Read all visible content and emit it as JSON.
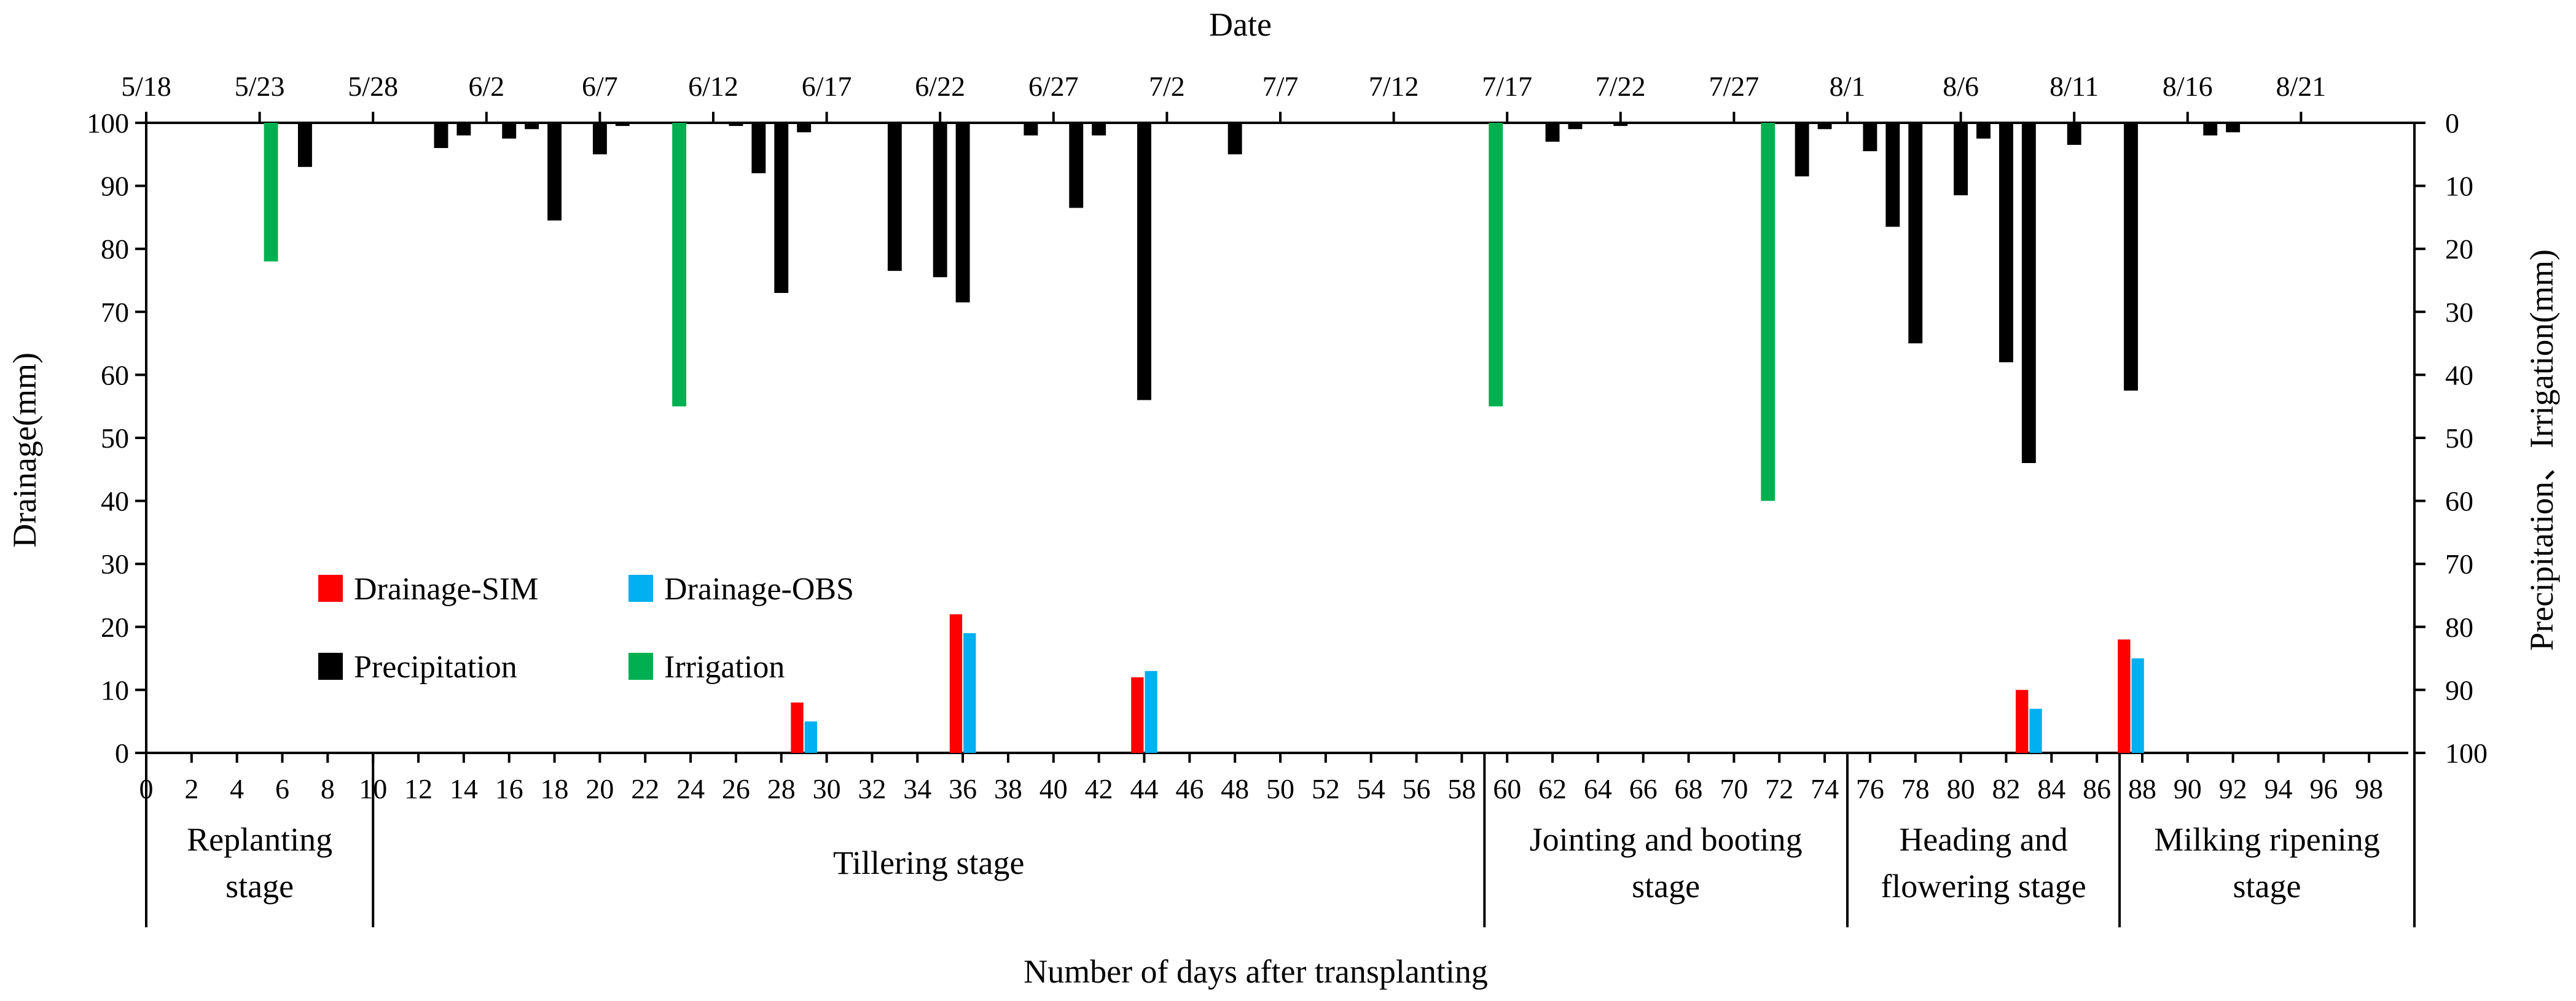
{
  "chart_data": {
    "type": "bar",
    "xlabel_bottom": "Number of days after transplanting",
    "xlabel_top": "Date",
    "ylabel_left": "Drainage(mm)",
    "ylabel_right": "Precipitation、Irrigation(mm)",
    "x_range": [
      0,
      100
    ],
    "ylim_left": [
      0,
      100
    ],
    "ylim_right": [
      0,
      100
    ],
    "right_axis_inverted": true,
    "left_ticks": [
      "0",
      "10",
      "20",
      "30",
      "40",
      "50",
      "60",
      "70",
      "80",
      "90",
      "100"
    ],
    "right_ticks": [
      "0",
      "10",
      "20",
      "30",
      "40",
      "50",
      "60",
      "70",
      "80",
      "90",
      "100"
    ],
    "bottom_ticks": [
      "0",
      "2",
      "4",
      "6",
      "8",
      "10",
      "12",
      "14",
      "16",
      "18",
      "20",
      "22",
      "24",
      "26",
      "28",
      "30",
      "32",
      "34",
      "36",
      "38",
      "40",
      "42",
      "44",
      "46",
      "48",
      "50",
      "52",
      "54",
      "56",
      "58",
      "60",
      "62",
      "64",
      "66",
      "68",
      "70",
      "72",
      "74",
      "76",
      "78",
      "80",
      "82",
      "84",
      "86",
      "88",
      "90",
      "92",
      "94",
      "96",
      "98"
    ],
    "top_ticks": [
      {
        "label": "5/18",
        "day": 0
      },
      {
        "label": "5/23",
        "day": 5
      },
      {
        "label": "5/28",
        "day": 10
      },
      {
        "label": "6/2",
        "day": 15
      },
      {
        "label": "6/7",
        "day": 20
      },
      {
        "label": "6/12",
        "day": 25
      },
      {
        "label": "6/17",
        "day": 30
      },
      {
        "label": "6/22",
        "day": 35
      },
      {
        "label": "6/27",
        "day": 40
      },
      {
        "label": "7/2",
        "day": 45
      },
      {
        "label": "7/7",
        "day": 50
      },
      {
        "label": "7/12",
        "day": 55
      },
      {
        "label": "7/17",
        "day": 60
      },
      {
        "label": "7/22",
        "day": 65
      },
      {
        "label": "7/27",
        "day": 70
      },
      {
        "label": "8/1",
        "day": 75
      },
      {
        "label": "8/6",
        "day": 80
      },
      {
        "label": "8/11",
        "day": 85
      },
      {
        "label": "8/16",
        "day": 90
      },
      {
        "label": "8/21",
        "day": 95
      }
    ],
    "series": [
      {
        "name": "Drainage-SIM",
        "axis": "left",
        "color": "#ff0000",
        "x": [
          29,
          36,
          44,
          83,
          87.5
        ],
        "values": [
          8,
          22,
          12,
          10,
          18
        ]
      },
      {
        "name": "Drainage-OBS",
        "axis": "left",
        "color": "#00b0f0",
        "x": [
          29,
          36,
          44,
          83,
          87.5
        ],
        "values": [
          5,
          19,
          13,
          7,
          15
        ]
      },
      {
        "name": "Precipitation",
        "axis": "right",
        "color": "#000000",
        "x": [
          7,
          13,
          14,
          16,
          17,
          18,
          20,
          21,
          26,
          27,
          28,
          29,
          33,
          35,
          36,
          39,
          41,
          42,
          44,
          48,
          62,
          63,
          65,
          73,
          74,
          76,
          77,
          78,
          80,
          81,
          82,
          83,
          85,
          87.5,
          91,
          92
        ],
        "values": [
          7,
          4,
          2,
          2.5,
          1,
          15.5,
          5,
          0.5,
          0.5,
          8,
          27,
          1.5,
          23.5,
          24.5,
          28.5,
          2,
          13.5,
          2,
          44,
          5,
          3,
          1,
          0.5,
          8.5,
          1,
          4.5,
          16.5,
          35,
          11.5,
          2.5,
          38,
          54,
          3.5,
          42.5,
          2,
          1.5
        ]
      },
      {
        "name": "Irrigation",
        "axis": "right",
        "color": "#00b050",
        "x": [
          5.5,
          23.5,
          59.5,
          71.5
        ],
        "values": [
          22,
          45,
          45,
          60
        ]
      }
    ],
    "stages": [
      {
        "name": "Replanting stage",
        "lines": [
          "Replanting",
          "stage"
        ],
        "start": 0,
        "end": 10
      },
      {
        "name": "Tillering stage",
        "lines": [
          "Tillering stage"
        ],
        "start": 10,
        "end": 59
      },
      {
        "name": "Jointing and booting stage",
        "lines": [
          "Jointing and booting",
          "stage"
        ],
        "start": 59,
        "end": 75
      },
      {
        "name": "Heading and flowering stage",
        "lines": [
          "Heading and",
          "flowering stage"
        ],
        "start": 75,
        "end": 87
      },
      {
        "name": "Milking ripening stage",
        "lines": [
          "Milking ripening",
          "stage"
        ],
        "start": 87,
        "end": 100
      }
    ]
  }
}
